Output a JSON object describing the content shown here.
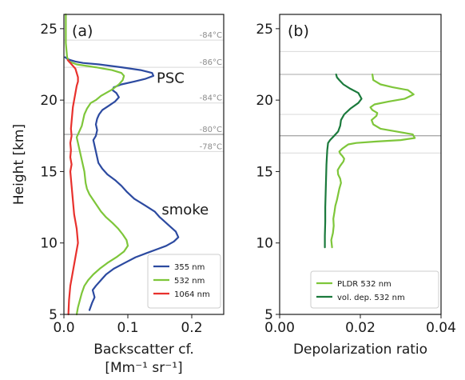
{
  "chart_data": [
    {
      "type": "line",
      "panel_label": "(a)",
      "xlabel": "Backscatter cf.",
      "xunit": "[Mm⁻¹ sr⁻¹]",
      "ylabel": "Height [km]",
      "xlim": [
        0,
        0.25
      ],
      "ylim": [
        5,
        26
      ],
      "xticks": [
        "0.0",
        "0.1",
        "0.2"
      ],
      "xtick_values": [
        0,
        0.1,
        0.2
      ],
      "yticks": [
        "5",
        "10",
        "15",
        "20",
        "25"
      ],
      "ytick_values": [
        5,
        10,
        15,
        20,
        25
      ],
      "legend_position": "lower-right",
      "reference_lines": [
        {
          "y": 24.2,
          "label": "-84°C",
          "color": "#d9d9d9"
        },
        {
          "y": 22.3,
          "label": "-86°C",
          "color": "#d9d9d9"
        },
        {
          "y": 19.8,
          "label": "-84°C",
          "color": "#d9d9d9"
        },
        {
          "y": 17.6,
          "label": "-80°C",
          "color": "#8c8c8c"
        },
        {
          "y": 16.4,
          "label": "-78°C",
          "color": "#d9d9d9"
        }
      ],
      "annotations": [
        {
          "text": "PSC",
          "x": 0.145,
          "y": 21.2
        },
        {
          "text": "smoke",
          "x": 0.153,
          "y": 12.0
        }
      ],
      "series": [
        {
          "name": "355 nm",
          "color": "#2c4aa0",
          "x": [
            0.04,
            0.044,
            0.048,
            0.045,
            0.05,
            0.058,
            0.066,
            0.078,
            0.095,
            0.112,
            0.13,
            0.148,
            0.16,
            0.172,
            0.179,
            0.175,
            0.165,
            0.155,
            0.15,
            0.142,
            0.128,
            0.11,
            0.098,
            0.09,
            0.08,
            0.068,
            0.06,
            0.054,
            0.052,
            0.05,
            0.048,
            0.046,
            0.05,
            0.052,
            0.05,
            0.052,
            0.055,
            0.06,
            0.07,
            0.08,
            0.086,
            0.082,
            0.076,
            0.078,
            0.09,
            0.11,
            0.128,
            0.14,
            0.138,
            0.12,
            0.09,
            0.055,
            0.03,
            0.018,
            0.01,
            0.005,
            0.002
          ],
          "y": [
            5.3,
            5.8,
            6.2,
            6.7,
            7.0,
            7.4,
            7.8,
            8.2,
            8.6,
            9.0,
            9.3,
            9.6,
            9.8,
            10.1,
            10.4,
            10.8,
            11.2,
            11.6,
            11.8,
            12.2,
            12.6,
            13.1,
            13.6,
            14.0,
            14.4,
            14.8,
            15.2,
            15.6,
            16.0,
            16.4,
            16.8,
            17.2,
            17.5,
            17.9,
            18.3,
            18.7,
            19.0,
            19.3,
            19.6,
            19.9,
            20.2,
            20.5,
            20.7,
            20.9,
            21.1,
            21.3,
            21.5,
            21.7,
            21.9,
            22.1,
            22.3,
            22.5,
            22.6,
            22.7,
            22.8,
            22.9,
            23.0
          ]
        },
        {
          "name": "532 nm",
          "color": "#7ec63a",
          "x": [
            0.02,
            0.022,
            0.025,
            0.028,
            0.032,
            0.038,
            0.046,
            0.056,
            0.068,
            0.082,
            0.094,
            0.1,
            0.098,
            0.092,
            0.085,
            0.076,
            0.066,
            0.058,
            0.052,
            0.046,
            0.04,
            0.036,
            0.034,
            0.033,
            0.032,
            0.03,
            0.028,
            0.026,
            0.024,
            0.022,
            0.02,
            0.024,
            0.028,
            0.03,
            0.032,
            0.036,
            0.042,
            0.05,
            0.058,
            0.066,
            0.074,
            0.08,
            0.086,
            0.092,
            0.094,
            0.09,
            0.075,
            0.05,
            0.02,
            0.008,
            0.005,
            0.004,
            0.003,
            0.003,
            0.003
          ],
          "y": [
            5.0,
            5.5,
            6.0,
            6.5,
            7.0,
            7.4,
            7.8,
            8.2,
            8.6,
            9.0,
            9.4,
            9.8,
            10.2,
            10.6,
            11.0,
            11.4,
            11.8,
            12.2,
            12.6,
            13.0,
            13.4,
            13.8,
            14.2,
            14.6,
            15.0,
            15.4,
            15.8,
            16.2,
            16.6,
            17.0,
            17.4,
            17.8,
            18.2,
            18.6,
            19.0,
            19.4,
            19.8,
            20.0,
            20.3,
            20.5,
            20.7,
            20.9,
            21.1,
            21.4,
            21.7,
            21.9,
            22.1,
            22.3,
            22.5,
            22.7,
            23.0,
            23.5,
            24.0,
            25.0,
            26.0
          ]
        },
        {
          "name": "1064 nm",
          "color": "#e8312d",
          "x": [
            0.007,
            0.008,
            0.01,
            0.012,
            0.014,
            0.016,
            0.018,
            0.02,
            0.022,
            0.021,
            0.02,
            0.018,
            0.016,
            0.015,
            0.014,
            0.013,
            0.012,
            0.011,
            0.01,
            0.012,
            0.01,
            0.011,
            0.01,
            0.012,
            0.011,
            0.012,
            0.013,
            0.014,
            0.016,
            0.018,
            0.02,
            0.022,
            0.022,
            0.02,
            0.018,
            0.014,
            0.01,
            0.006
          ],
          "y": [
            5.0,
            6.0,
            7.0,
            7.5,
            8.0,
            8.5,
            9.0,
            9.5,
            10.0,
            10.5,
            11.0,
            11.5,
            12.0,
            12.5,
            13.0,
            13.5,
            14.0,
            14.5,
            15.0,
            15.5,
            16.0,
            16.5,
            17.0,
            17.5,
            18.0,
            18.5,
            19.0,
            19.5,
            20.0,
            20.5,
            21.0,
            21.3,
            21.6,
            21.9,
            22.2,
            22.4,
            22.6,
            22.8
          ]
        }
      ]
    },
    {
      "type": "line",
      "panel_label": "(b)",
      "xlabel": "Depolarization ratio",
      "ylabel": "",
      "xlim": [
        0,
        0.04
      ],
      "ylim": [
        5,
        26
      ],
      "xticks": [
        "0.00",
        "0.02",
        "0.04"
      ],
      "xtick_values": [
        0,
        0.02,
        0.04
      ],
      "yticks": [
        "5",
        "10",
        "15",
        "20",
        "25"
      ],
      "ytick_values": [
        5,
        10,
        15,
        20,
        25
      ],
      "legend_position": "lower-right",
      "reference_lines": [
        {
          "y": 23.4,
          "color": "#d9d9d9"
        },
        {
          "y": 21.8,
          "color": "#aaaaaa"
        },
        {
          "y": 19.0,
          "color": "#d9d9d9"
        },
        {
          "y": 17.5,
          "color": "#8c8c8c"
        },
        {
          "y": 16.3,
          "color": "#d9d9d9"
        }
      ],
      "series": [
        {
          "name": "PLDR 532 nm",
          "color": "#7ec63a",
          "x": [
            0.013,
            0.0128,
            0.0132,
            0.0134,
            0.0133,
            0.0136,
            0.0138,
            0.0142,
            0.0145,
            0.0148,
            0.0152,
            0.015,
            0.0145,
            0.0144,
            0.015,
            0.0158,
            0.016,
            0.0155,
            0.015,
            0.0148,
            0.0155,
            0.0165,
            0.017,
            0.019,
            0.024,
            0.03,
            0.0335,
            0.033,
            0.029,
            0.025,
            0.0232,
            0.0228,
            0.024,
            0.0242,
            0.023,
            0.0225,
            0.0235,
            0.027,
            0.031,
            0.0332,
            0.0318,
            0.028,
            0.025,
            0.0232,
            0.023
          ],
          "y": [
            9.7,
            10.2,
            10.7,
            11.2,
            11.7,
            12.2,
            12.6,
            13.0,
            13.4,
            13.8,
            14.2,
            14.5,
            14.8,
            15.1,
            15.4,
            15.7,
            15.9,
            16.1,
            16.25,
            16.4,
            16.6,
            16.8,
            16.9,
            17.0,
            17.1,
            17.2,
            17.35,
            17.6,
            17.8,
            18.0,
            18.3,
            18.6,
            18.9,
            19.1,
            19.3,
            19.5,
            19.7,
            19.9,
            20.1,
            20.4,
            20.7,
            20.9,
            21.1,
            21.4,
            21.8
          ]
        },
        {
          "name": "vol. dep. 532 nm",
          "color": "#1b7a3c",
          "x": [
            0.0112,
            0.0112,
            0.0113,
            0.0113,
            0.0114,
            0.0115,
            0.0116,
            0.0117,
            0.0118,
            0.012,
            0.0125,
            0.0135,
            0.0145,
            0.015,
            0.0152,
            0.016,
            0.0175,
            0.0195,
            0.0203,
            0.0195,
            0.0175,
            0.0158,
            0.0148,
            0.0142,
            0.014
          ],
          "y": [
            9.7,
            10.5,
            11.5,
            12.5,
            13.5,
            14.5,
            15.5,
            16.0,
            16.5,
            17.0,
            17.2,
            17.5,
            17.8,
            18.2,
            18.6,
            19.0,
            19.4,
            19.8,
            20.1,
            20.5,
            20.8,
            21.1,
            21.4,
            21.6,
            21.8
          ]
        }
      ]
    }
  ]
}
